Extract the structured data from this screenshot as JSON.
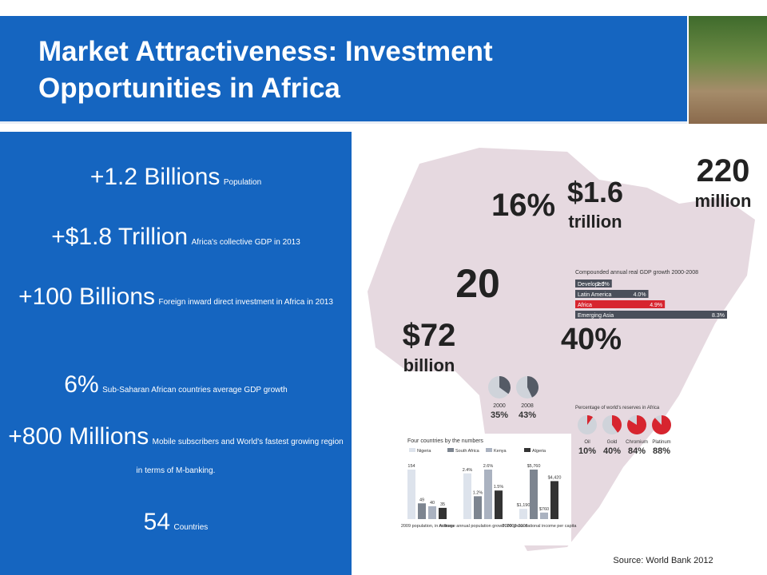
{
  "header": {
    "title": "Market Attractiveness: Investment Opportunities in Africa"
  },
  "stats": [
    {
      "value": "+1.2 Billions",
      "label": "Population"
    },
    {
      "value": "+$1.8 Trillion",
      "label": "Africa's collective GDP in 2013"
    },
    {
      "value": "+100 Billions",
      "label": "Foreign inward direct investment in Africa in 2013"
    },
    {
      "value": "6%",
      "label": "Sub-Saharan African countries average GDP growth"
    },
    {
      "value": "+800 Millions",
      "label": "Mobile subscribers and World's fastest growing region in terms of M-banking."
    },
    {
      "value": "54",
      "label": "Countries"
    }
  ],
  "infographic": {
    "highlights": [
      {
        "value": "220",
        "unit": "million"
      },
      {
        "value": "$1.6",
        "unit": "trillion"
      },
      {
        "value": "16%"
      },
      {
        "value": "20"
      },
      {
        "value": "$72",
        "unit": "billion"
      },
      {
        "value": "40%"
      }
    ],
    "gdp_growth": {
      "title": "Compounded annual real GDP growth 2000-2008",
      "categories": [
        "Developed",
        "Latin America",
        "Africa",
        "Emerging Asia"
      ],
      "values": [
        2.0,
        4.0,
        4.9,
        8.3
      ],
      "value_labels": [
        "2.0%",
        "4.0%",
        "4.9%",
        "8.3%"
      ],
      "colors": [
        "#4a4f5a",
        "#4a4f5a",
        "#d7252f",
        "#4a4f5a"
      ]
    },
    "households": {
      "categories": [
        "2000",
        "2008"
      ],
      "values": [
        35,
        43
      ],
      "value_labels": [
        "35%",
        "43%"
      ],
      "color": "#555b66"
    },
    "reserves": {
      "title": "Percentage of world's reserves in Africa",
      "categories": [
        "Oil",
        "Gold",
        "Chromium",
        "Platinum"
      ],
      "values": [
        10,
        40,
        84,
        88
      ],
      "value_labels": [
        "10%",
        "40%",
        "84%",
        "88%"
      ],
      "color": "#d7252f"
    },
    "countries": {
      "title": "Four countries by the numbers",
      "groups": [
        "2009 population, in millions",
        "Average annual population growth 2002-2008",
        "2009 gross national income per capita"
      ],
      "series": [
        {
          "name": "Nigeria",
          "color": "#dde3ec",
          "values": [
            154,
            2.4,
            1190
          ],
          "value_labels": [
            "154",
            "2.4%",
            "$1,190"
          ]
        },
        {
          "name": "South Africa",
          "color": "#7d8590",
          "values": [
            49,
            1.2,
            5760
          ],
          "value_labels": [
            "49",
            "1.2%",
            "$5,760"
          ]
        },
        {
          "name": "Kenya",
          "color": "#aab2c0",
          "values": [
            40,
            2.6,
            760
          ],
          "value_labels": [
            "40",
            "2.6%",
            "$760"
          ]
        },
        {
          "name": "Algeria",
          "color": "#333333",
          "values": [
            35,
            1.5,
            4420
          ],
          "value_labels": [
            "35",
            "1.5%",
            "$4,420"
          ]
        }
      ]
    }
  },
  "source": "Source: World Bank 2012"
}
